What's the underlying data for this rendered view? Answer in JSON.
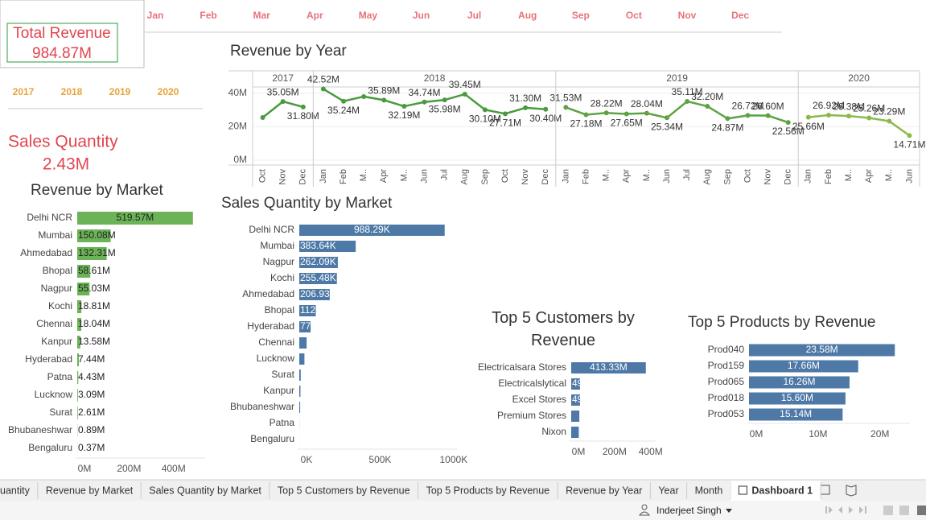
{
  "month_filter": [
    "Jan",
    "Feb",
    "Mar",
    "Apr",
    "May",
    "Jun",
    "Jul",
    "Aug",
    "Sep",
    "Oct",
    "Nov",
    "Dec"
  ],
  "kpis": [
    {
      "label": "Total Revenue",
      "value": "984.87M"
    },
    {
      "label": "Sales Quantity",
      "value": "2.43M"
    }
  ],
  "year_filter": [
    "2017",
    "2018",
    "2019",
    "2020"
  ],
  "chart_data": [
    {
      "type": "line",
      "title": "Revenue by Year",
      "ylim": [
        0,
        50
      ],
      "yticks": [
        {
          "value": 0,
          "label": "0M"
        },
        {
          "value": 20,
          "label": "20M"
        },
        {
          "value": 40,
          "label": "40M"
        }
      ],
      "grid": true,
      "groups": [
        {
          "label": "2017",
          "color": "#4a9a3f",
          "categories": [
            "Oct",
            "Nov",
            "Dec"
          ],
          "values": [
            25.5,
            35.05,
            31.8
          ],
          "value_labels": [
            null,
            "35.05M",
            "31.80M"
          ]
        },
        {
          "label": "2018",
          "color": "#4a9a3f",
          "categories": [
            "Jan",
            "Feb",
            "M..",
            "Apr",
            "M..",
            "Jun",
            "Jul",
            "Aug",
            "Sep",
            "Oct",
            "Nov",
            "Dec"
          ],
          "values": [
            42.52,
            35.24,
            38.0,
            35.89,
            32.19,
            34.74,
            35.98,
            39.45,
            30.1,
            27.71,
            31.3,
            30.4
          ],
          "value_labels": [
            "42.52M",
            "35.24M",
            null,
            "35.89M",
            "32.19M",
            "34.74M",
            "35.98M",
            "39.45M",
            "30.10M",
            "27.71M",
            "31.30M",
            "30.40M"
          ]
        },
        {
          "label": "2019",
          "color": "#5ea243",
          "categories": [
            "Jan",
            "Feb",
            "M..",
            "Apr",
            "M..",
            "Jun",
            "Jul",
            "Aug",
            "Sep",
            "Oct",
            "Nov",
            "Dec"
          ],
          "values": [
            31.53,
            27.18,
            28.22,
            27.65,
            28.04,
            25.34,
            35.11,
            32.2,
            24.87,
            26.72,
            26.6,
            22.56
          ],
          "value_labels": [
            "31.53M",
            "27.18M",
            "28.22M",
            "27.65M",
            "28.04M",
            "25.34M",
            "35.11M",
            "32.20M",
            "24.87M",
            "26.72M",
            "26.60M",
            "22.56M"
          ]
        },
        {
          "label": "2020",
          "color": "#8cba4a",
          "categories": [
            "Jan",
            "Feb",
            "M..",
            "Apr",
            "M..",
            "Jun"
          ],
          "values": [
            25.66,
            26.92,
            26.38,
            25.26,
            23.29,
            14.71
          ],
          "value_labels": [
            "25.66M",
            "26.92M",
            "26.38M",
            "25.26M",
            "23.29M",
            "14.71M"
          ]
        }
      ]
    },
    {
      "type": "hbar",
      "title": "Revenue by Market",
      "color": "#6bb356",
      "categories": [
        "Delhi NCR",
        "Mumbai",
        "Ahmedabad",
        "Bhopal",
        "Nagpur",
        "Kochi",
        "Chennai",
        "Kanpur",
        "Hyderabad",
        "Patna",
        "Lucknow",
        "Surat",
        "Bhubaneshwar",
        "Bengaluru"
      ],
      "values": [
        519.57,
        150.08,
        132.31,
        58.61,
        55.03,
        18.81,
        18.04,
        13.58,
        7.44,
        4.43,
        3.09,
        2.61,
        0.89,
        0.37
      ],
      "value_labels": [
        "519.57M",
        "150.08M",
        "132.31M",
        "58.61M",
        "55.03M",
        "18.81M",
        "18.04M",
        "13.58M",
        "7.44M",
        "4.43M",
        "3.09M",
        "2.61M",
        "0.89M",
        "0.37M"
      ],
      "xlim": [
        0,
        560
      ],
      "xticks": [
        {
          "value": 0,
          "label": "0M"
        },
        {
          "value": 200,
          "label": "200M"
        },
        {
          "value": 400,
          "label": "400M"
        }
      ]
    },
    {
      "type": "hbar",
      "title": "Sales Quantity by Market",
      "color": "#4e79a7",
      "categories": [
        "Delhi NCR",
        "Mumbai",
        "Nagpur",
        "Kochi",
        "Ahmedabad",
        "Bhopal",
        "Hyderabad",
        "Chennai",
        "Lucknow",
        "Surat",
        "Kanpur",
        "Bhubaneshwar",
        "Patna",
        "Bengaluru"
      ],
      "values": [
        988.29,
        383.64,
        262.09,
        255.48,
        206.93,
        112,
        77,
        50,
        35,
        10,
        8,
        6,
        0.5,
        0.3
      ],
      "value_labels": [
        "988.29K",
        "383.64K",
        "262.09K",
        "255.48K",
        "206.93",
        "112",
        "77",
        null,
        null,
        null,
        null,
        null,
        null,
        null
      ],
      "xlim": [
        0,
        1050
      ],
      "xticks": [
        {
          "value": 0,
          "label": "0K"
        },
        {
          "value": 500,
          "label": "500K"
        },
        {
          "value": 1000,
          "label": "1000K"
        }
      ]
    },
    {
      "type": "hbar",
      "title": "Top 5 Customers by Revenue",
      "color": "#4e79a7",
      "categories": [
        "Electricalsara Stores",
        "Electricalslytical",
        "Excel Stores",
        "Premium Stores",
        "Nixon"
      ],
      "values": [
        413.33,
        49,
        49,
        45,
        42
      ],
      "value_labels": [
        "413.33M",
        "49",
        "49",
        null,
        null
      ],
      "xlim": [
        0,
        450
      ],
      "xticks": [
        {
          "value": 0,
          "label": "0M"
        },
        {
          "value": 200,
          "label": "200M"
        },
        {
          "value": 400,
          "label": "400M"
        }
      ]
    },
    {
      "type": "hbar",
      "title": "Top 5 Products by Revenue",
      "color": "#4e79a7",
      "categories": [
        "Prod040",
        "Prod159",
        "Prod065",
        "Prod018",
        "Prod053"
      ],
      "values": [
        23.58,
        17.66,
        16.26,
        15.6,
        15.14
      ],
      "value_labels": [
        "23.58M",
        "17.66M",
        "16.26M",
        "15.60M",
        "15.14M"
      ],
      "xlim": [
        0,
        25.5
      ],
      "xticks": [
        {
          "value": 0,
          "label": "0M"
        },
        {
          "value": 10,
          "label": "10M"
        },
        {
          "value": 20,
          "label": "20M"
        }
      ]
    }
  ],
  "tabs": [
    "uantity",
    "Revenue by Market",
    "Sales Quantity by Market",
    "Top 5 Customers by Revenue",
    "Top 5 Products by Revenue",
    "Revenue by Year",
    "Year",
    "Month",
    "Dashboard 1"
  ],
  "active_tab": "Dashboard 1",
  "status_bar": {
    "user": "Inderjeet Singh"
  }
}
